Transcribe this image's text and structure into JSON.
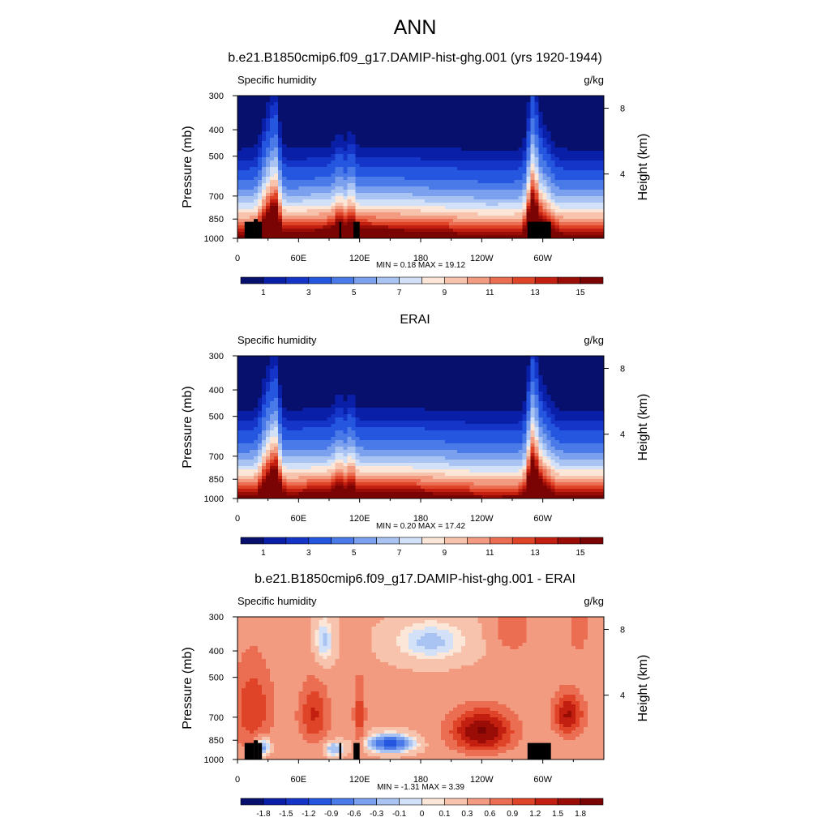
{
  "title": "ANN",
  "panels": [
    {
      "title": "b.e21.B1850cmip6.f09_g17.DAMIP-hist-ghg.001 (yrs 1920-1944)",
      "left_label": "Specific humidity",
      "right_label": "g/kg",
      "stats": "MIN =   0.18  MAX =  19.12"
    },
    {
      "title": "ERAI",
      "left_label": "Specific humidity",
      "right_label": "g/kg",
      "stats": "MIN =   0.20  MAX =  17.42"
    },
    {
      "title": "b.e21.B1850cmip6.f09_g17.DAMIP-hist-ghg.001 - ERAI",
      "left_label": "Specific humidity",
      "right_label": "g/kg",
      "stats": "MIN =  -1.31  MAX =   3.39"
    }
  ],
  "colors": {
    "abs_scale": [
      "#08106e",
      "#0a1fa8",
      "#1435c8",
      "#2556e0",
      "#4a7ae8",
      "#7ba0ee",
      "#a9c3f3",
      "#d2e0f8",
      "#fbe6d8",
      "#f8c3ac",
      "#f39b80",
      "#ec6e52",
      "#df4428",
      "#c21f10",
      "#9a0d06",
      "#7a0403"
    ],
    "diff_scale": [
      "#08106e",
      "#0a1fa8",
      "#1435c8",
      "#2556e0",
      "#4a7ae8",
      "#7ba0ee",
      "#a9c3f3",
      "#d2e0f8",
      "#fbe6d8",
      "#f8c3ac",
      "#f39b80",
      "#ec6e52",
      "#df4428",
      "#c21f10",
      "#9a0d06",
      "#7a0403"
    ]
  },
  "chart_data": [
    {
      "type": "heatmap",
      "title": "b.e21.B1850cmip6.f09_g17.DAMIP-hist-ghg.001 (yrs 1920-1944)",
      "variable": "Specific humidity",
      "units": "g/kg",
      "xlabel": "",
      "ylabel": "Pressure (mb)",
      "y2label": "Height (km)",
      "x_ticks": [
        "0",
        "60E",
        "120E",
        "180",
        "120W",
        "60W"
      ],
      "x_tick_values": [
        0,
        60,
        120,
        180,
        240,
        300
      ],
      "xlim": [
        0,
        360
      ],
      "y_ticks": [
        "300",
        "400",
        "500",
        "700",
        "850",
        "1000"
      ],
      "y_tick_values": [
        300,
        400,
        500,
        700,
        850,
        1000
      ],
      "ylim": [
        300,
        1000
      ],
      "y_scale": "log",
      "y2_ticks": [
        "8",
        "4"
      ],
      "y2_tick_values": [
        8,
        4
      ],
      "min": 0.18,
      "max": 19.12,
      "colorbar_labels": [
        "1",
        "3",
        "5",
        "7",
        "9",
        "11",
        "13",
        "15"
      ],
      "colorbar_levels": [
        0.5,
        1,
        1.5,
        2,
        3,
        4,
        5,
        6,
        7,
        8,
        9,
        10,
        11,
        12,
        13,
        14,
        15
      ]
    },
    {
      "type": "heatmap",
      "title": "ERAI",
      "variable": "Specific humidity",
      "units": "g/kg",
      "xlabel": "",
      "ylabel": "Pressure (mb)",
      "y2label": "Height (km)",
      "x_ticks": [
        "0",
        "60E",
        "120E",
        "180",
        "120W",
        "60W"
      ],
      "x_tick_values": [
        0,
        60,
        120,
        180,
        240,
        300
      ],
      "xlim": [
        0,
        360
      ],
      "y_ticks": [
        "300",
        "400",
        "500",
        "700",
        "850",
        "1000"
      ],
      "y_tick_values": [
        300,
        400,
        500,
        700,
        850,
        1000
      ],
      "ylim": [
        300,
        1000
      ],
      "y_scale": "log",
      "y2_ticks": [
        "8",
        "4"
      ],
      "y2_tick_values": [
        8,
        4
      ],
      "min": 0.2,
      "max": 17.42,
      "colorbar_labels": [
        "1",
        "3",
        "5",
        "7",
        "9",
        "11",
        "13",
        "15"
      ],
      "colorbar_levels": [
        0.5,
        1,
        1.5,
        2,
        3,
        4,
        5,
        6,
        7,
        8,
        9,
        10,
        11,
        12,
        13,
        14,
        15
      ]
    },
    {
      "type": "heatmap",
      "title": "b.e21.B1850cmip6.f09_g17.DAMIP-hist-ghg.001 - ERAI",
      "variable": "Specific humidity",
      "units": "g/kg",
      "xlabel": "",
      "ylabel": "Pressure (mb)",
      "y2label": "Height (km)",
      "x_ticks": [
        "0",
        "60E",
        "120E",
        "180",
        "120W",
        "60W"
      ],
      "x_tick_values": [
        0,
        60,
        120,
        180,
        240,
        300
      ],
      "xlim": [
        0,
        360
      ],
      "y_ticks": [
        "300",
        "400",
        "500",
        "700",
        "850",
        "1000"
      ],
      "y_tick_values": [
        300,
        400,
        500,
        700,
        850,
        1000
      ],
      "ylim": [
        300,
        1000
      ],
      "y_scale": "log",
      "y2_ticks": [
        "8",
        "4"
      ],
      "y2_tick_values": [
        8,
        4
      ],
      "min": -1.31,
      "max": 3.39,
      "colorbar_labels": [
        "-1.8",
        "-1.5",
        "-1.2",
        "-0.9",
        "-0.6",
        "-0.3",
        "-0.1",
        "0",
        "0.1",
        "0.3",
        "0.6",
        "0.9",
        "1.2",
        "1.5",
        "1.8"
      ],
      "colorbar_levels": [
        -2.1,
        -1.8,
        -1.5,
        -1.2,
        -0.9,
        -0.6,
        -0.3,
        -0.1,
        0,
        0.1,
        0.3,
        0.6,
        0.9,
        1.2,
        1.5,
        1.8,
        2.1
      ]
    }
  ]
}
